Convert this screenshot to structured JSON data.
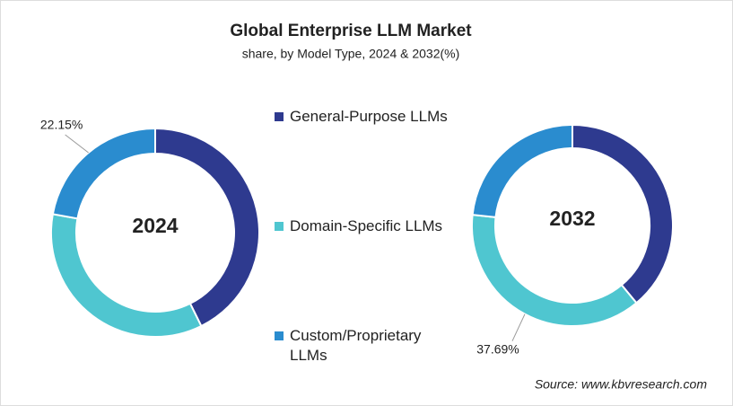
{
  "chart_data": {
    "type": "donut",
    "title": "Global Enterprise LLM Market",
    "subtitle": "share, by Model Type, 2024 & 2032(%)",
    "source": "Source: www.kbvresearch.com",
    "categories": [
      "General-Purpose LLMs",
      "Domain-Specific LLMs",
      "Custom/Proprietary LLMs"
    ],
    "colors": [
      "#2e3a8f",
      "#4fc6d0",
      "#2a8ccf"
    ],
    "series": [
      {
        "name": "2024",
        "values": [
          42.7,
          35.15,
          22.15
        ],
        "value_labels": [
          null,
          null,
          "22.15%"
        ]
      },
      {
        "name": "2032",
        "values": [
          39.0,
          37.69,
          23.31
        ],
        "value_labels": [
          null,
          "37.69%",
          null
        ]
      }
    ]
  }
}
